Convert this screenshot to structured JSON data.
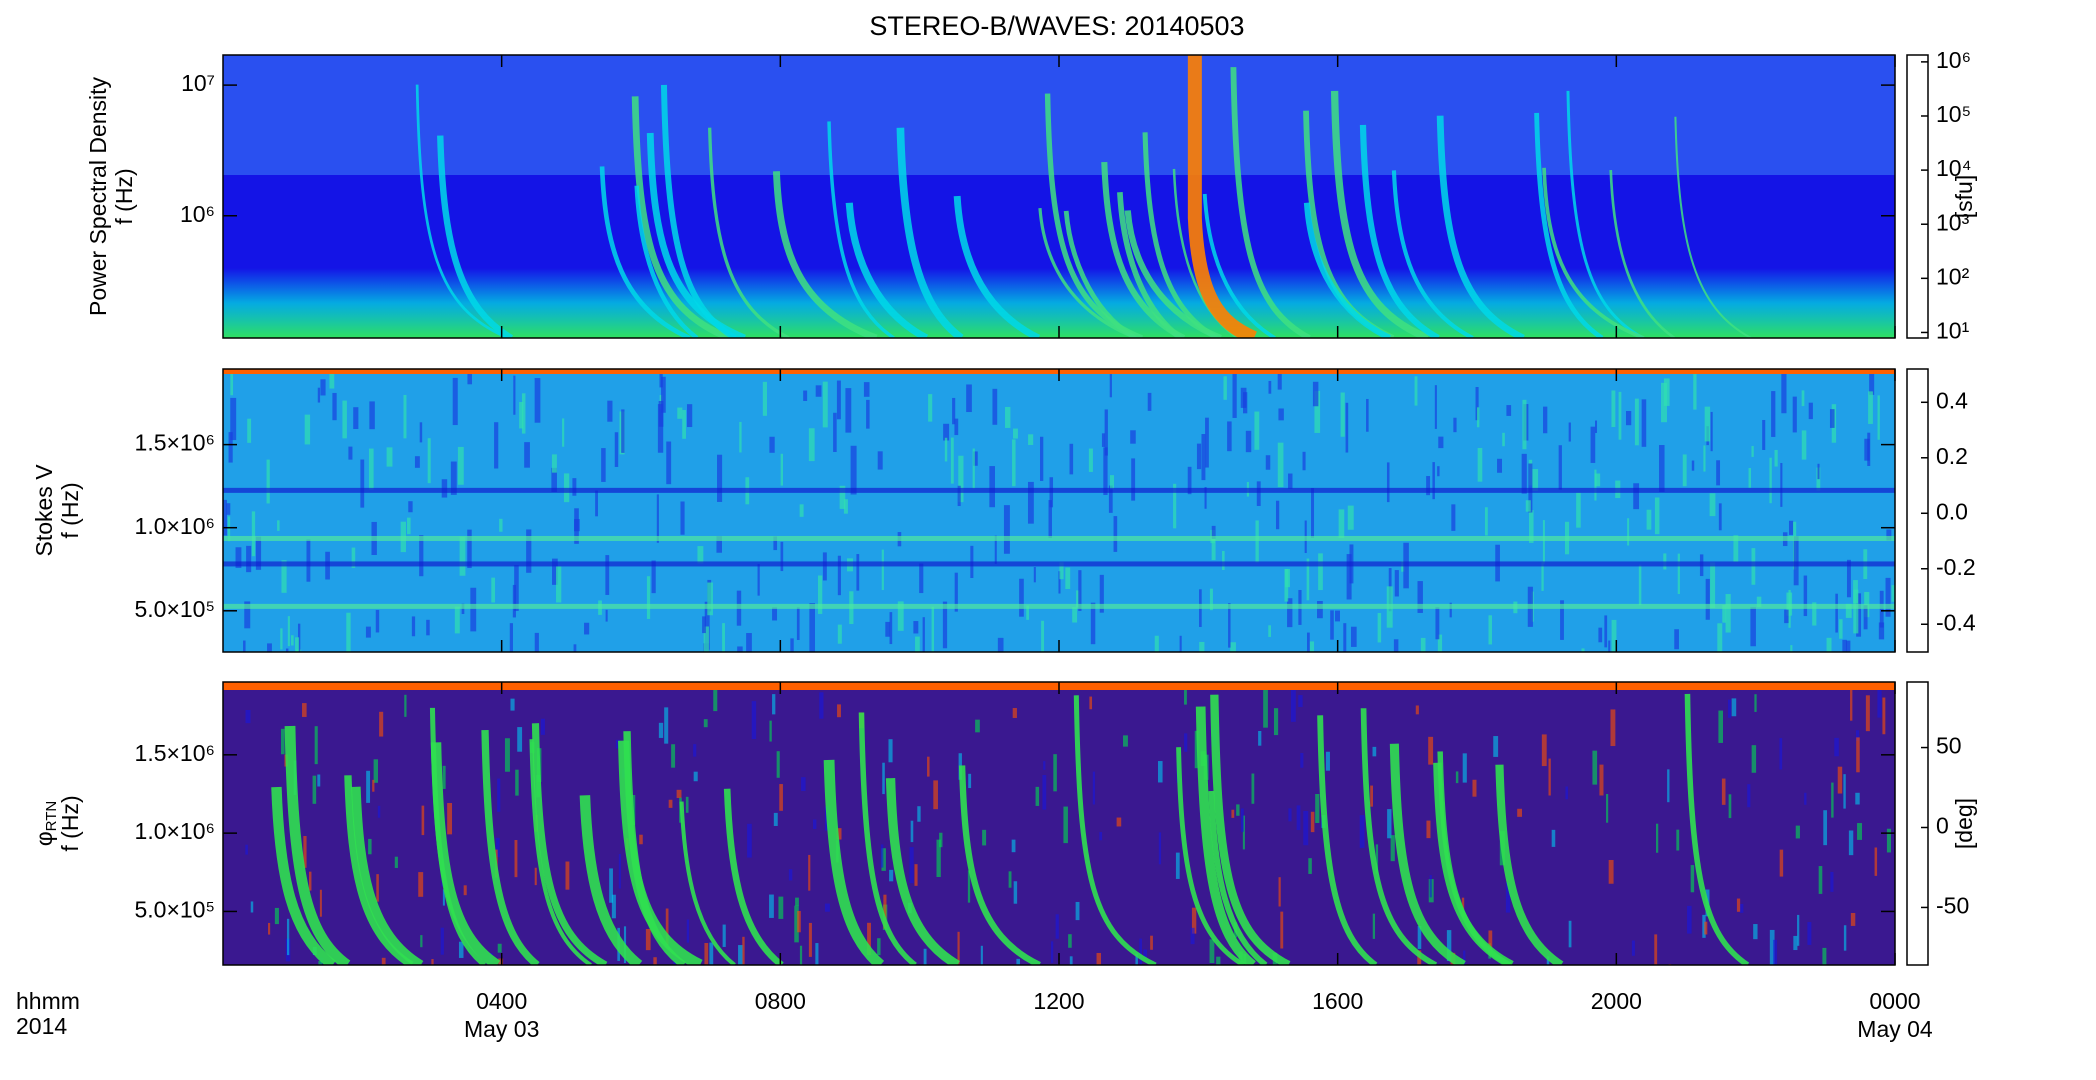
{
  "title": "STEREO-B/WAVES: 20140503",
  "x_axis": {
    "corner_labels": [
      "hhmm",
      "2014"
    ],
    "xlim": [
      0,
      24
    ],
    "ticks": [
      {
        "value": 4,
        "label": "0400"
      },
      {
        "value": 8,
        "label": "0800"
      },
      {
        "value": 12,
        "label": "1200"
      },
      {
        "value": 16,
        "label": "1600"
      },
      {
        "value": 20,
        "label": "2000"
      },
      {
        "value": 24,
        "label": "0000"
      }
    ],
    "dates": [
      {
        "value": 4,
        "label": "May 03"
      },
      {
        "value": 24,
        "label": "May 04"
      }
    ]
  },
  "chart_data": [
    {
      "type": "heatmap",
      "style": "psd",
      "ylabel": [
        "Power Spectral Density",
        "f (Hz)"
      ],
      "ylog": true,
      "ylim": [
        116000,
        17000000
      ],
      "yticks": [
        {
          "value": 1000000,
          "label": "10⁶"
        },
        {
          "value": 10000000,
          "label": "10⁷"
        }
      ],
      "colorbar": {
        "label": "[sfu]",
        "log": true,
        "clim": [
          7.9,
          1340000
        ],
        "ticks": [
          {
            "value": 10,
            "label": "10¹"
          },
          {
            "value": 100,
            "label": "10²"
          },
          {
            "value": 1000,
            "label": "10³"
          },
          {
            "value": 10000,
            "label": "10⁴"
          },
          {
            "value": 100000,
            "label": "10⁵"
          },
          {
            "value": 1000000,
            "label": "10⁶"
          }
        ]
      }
    },
    {
      "type": "heatmap",
      "style": "stokes",
      "ylabel": [
        "Stokes V",
        "f (Hz)"
      ],
      "ylog": false,
      "ylim": [
        252000,
        1955000
      ],
      "yticks": [
        {
          "value": 500000,
          "label": "5.0×10⁵"
        },
        {
          "value": 1000000,
          "label": "1.0×10⁶"
        },
        {
          "value": 1500000,
          "label": "1.5×10⁶"
        }
      ],
      "colorbar": {
        "log": false,
        "clim": [
          -0.5,
          0.52
        ],
        "ticks": [
          {
            "value": -0.4,
            "label": "-0.4"
          },
          {
            "value": -0.2,
            "label": "-0.2"
          },
          {
            "value": 0,
            "label": "0.0"
          },
          0.2,
          0.4
        ]
      }
    },
    {
      "type": "heatmap",
      "style": "phi",
      "ylabel": [
        {
          "symbol": "φ",
          "subscript": "RTN"
        },
        "f (Hz)"
      ],
      "ylog": false,
      "ylim": [
        158000,
        1965000
      ],
      "yticks": [
        {
          "value": 500000,
          "label": "5.0×10⁵"
        },
        {
          "value": 1000000,
          "label": "1.0×10⁶"
        },
        {
          "value": 1500000,
          "label": "1.5×10⁶"
        }
      ],
      "colorbar": {
        "label": "[deg]",
        "log": false,
        "clim": [
          -86,
          91
        ],
        "ticks": [
          -50,
          0,
          50
        ]
      }
    }
  ]
}
